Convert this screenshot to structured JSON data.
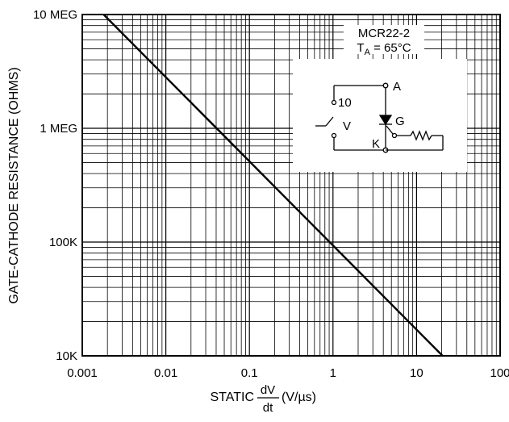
{
  "chart_data": {
    "type": "line",
    "x_scale": "log",
    "y_scale": "log",
    "xlim": [
      0.001,
      100
    ],
    "ylim": [
      10000,
      10000000
    ],
    "grid": true,
    "x_ticks": [
      "0.001",
      "0.01",
      "0.1",
      "1",
      "10",
      "100"
    ],
    "y_ticks": [
      "10K",
      "100K",
      "1 MEG",
      "10 MEG"
    ],
    "xlabel": {
      "prefix": "STATIC",
      "numerator": "dV",
      "denominator": "dt",
      "unit": "(V/µs)"
    },
    "ylabel": "GATE-CATHODE RESISTANCE (OHMS)",
    "series": [
      {
        "x": [
          0.0018,
          20.5
        ],
        "y": [
          10000000,
          10000
        ],
        "color": "#000000"
      }
    ],
    "annotation": {
      "device": "MCR22-2",
      "temp_prefix": "T",
      "temp_sub": "A",
      "temp_suffix": " = 65°C"
    },
    "circuit": {
      "label_anode": "A",
      "label_gate": "G",
      "label_cathode": "K",
      "label_source": "10",
      "label_v": "V"
    }
  }
}
